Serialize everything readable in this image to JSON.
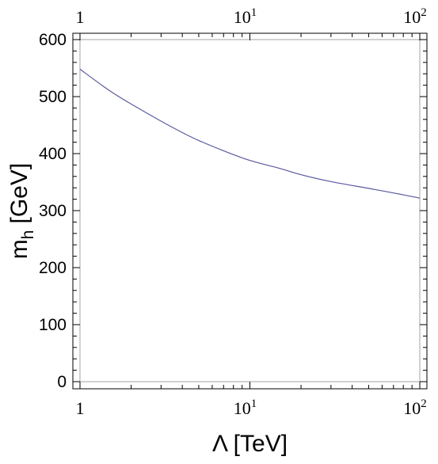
{
  "chart_data": {
    "type": "line",
    "title": "",
    "xlabel": "Λ [TeV]",
    "ylabel": "m_h [GeV]",
    "ylabel_parts": {
      "main": "m",
      "sub": "h",
      "unit": "[GeV]"
    },
    "x_scale": "log",
    "xlim": [
      1,
      100
    ],
    "ylim": [
      0,
      600
    ],
    "x_major_ticks": [
      {
        "value": 1,
        "base": "1",
        "exp": ""
      },
      {
        "value": 10,
        "base": "10",
        "exp": "1"
      },
      {
        "value": 100,
        "base": "10",
        "exp": "2"
      }
    ],
    "y_ticks": [
      0,
      100,
      200,
      300,
      400,
      500,
      600
    ],
    "grid": false,
    "frame_color": "#000000",
    "inner_box_color": "#b8b8b8",
    "line_color": "#5a5aa0",
    "series": [
      {
        "x": [
          1,
          1.5,
          2,
          3,
          4,
          5,
          7,
          10,
          15,
          20,
          30,
          50,
          70,
          100
        ],
        "y": [
          548,
          510,
          487,
          457,
          437,
          423,
          405,
          388,
          374,
          363,
          351,
          339,
          331,
          322
        ]
      }
    ]
  }
}
